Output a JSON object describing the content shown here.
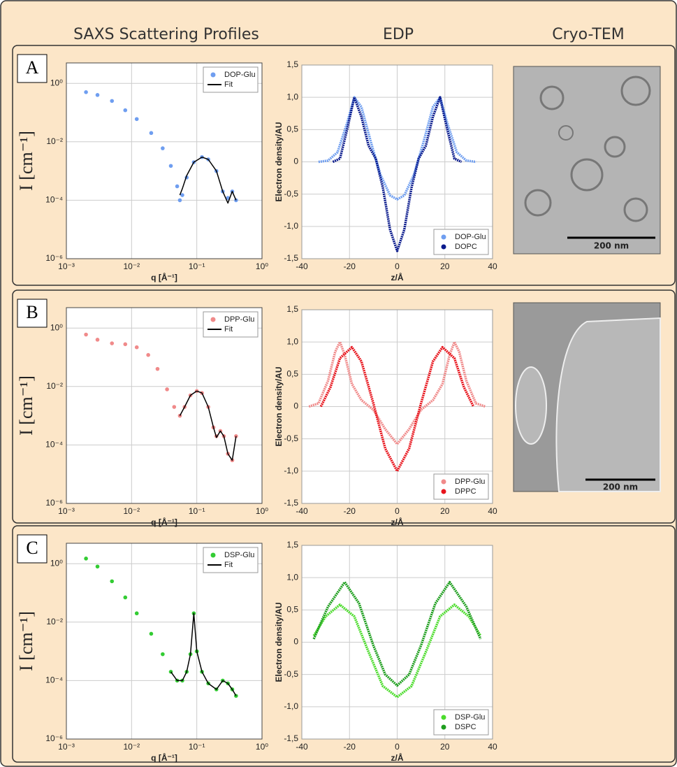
{
  "columns": [
    "SAXS Scattering Profiles",
    "EDP",
    "Cryo-TEM"
  ],
  "panels": [
    {
      "label": "A",
      "scale_bar": "200 nm"
    },
    {
      "label": "B",
      "scale_bar": "200 nm"
    },
    {
      "label": "C"
    }
  ],
  "chart_data": [
    {
      "type": "scatter",
      "xscale": "log",
      "yscale": "log",
      "grid": true,
      "legend": "upper right",
      "xlabel": "q [Å⁻¹]",
      "ylabel": "I [cm⁻¹]",
      "xlim": [
        0.001,
        1
      ],
      "ylim": [
        1e-06,
        5
      ],
      "xticks": [
        {
          "value": 0.001,
          "label": "10⁻³"
        },
        {
          "value": 0.01,
          "label": "10⁻²"
        },
        {
          "value": 0.1,
          "label": "10⁻¹"
        },
        {
          "value": 1,
          "label": "10⁰"
        }
      ],
      "yticks": [
        {
          "value": 1e-06,
          "label": "10⁻⁶"
        },
        {
          "value": 0.0001,
          "label": "10⁻⁴"
        },
        {
          "value": 0.01,
          "label": "10⁻²"
        },
        {
          "value": 1,
          "label": "10⁰"
        }
      ],
      "series": [
        {
          "name": "DOP-Glu",
          "color": "#6f9ef0",
          "mode": "markers",
          "x": [
            0.002,
            0.003,
            0.005,
            0.008,
            0.012,
            0.02,
            0.03,
            0.04,
            0.05,
            0.055,
            0.06,
            0.07,
            0.09,
            0.12,
            0.15,
            0.2,
            0.25,
            0.3,
            0.35,
            0.4
          ],
          "values": [
            0.5,
            0.4,
            0.25,
            0.12,
            0.06,
            0.02,
            0.006,
            0.0015,
            0.0003,
            0.0001,
            0.00015,
            0.0006,
            0.002,
            0.003,
            0.0025,
            0.001,
            0.0002,
            0.00012,
            0.0002,
            0.0001
          ]
        },
        {
          "name": "Fit",
          "color": "#000000",
          "mode": "line",
          "x": [
            0.055,
            0.06,
            0.07,
            0.09,
            0.12,
            0.15,
            0.2,
            0.25,
            0.3,
            0.35,
            0.4
          ],
          "values": [
            0.00015,
            0.00025,
            0.0007,
            0.002,
            0.003,
            0.0025,
            0.001,
            0.0002,
            8e-05,
            0.0002,
            0.0001
          ]
        }
      ]
    },
    {
      "type": "line",
      "grid": true,
      "legend": "lower right",
      "xlabel": "z/Å",
      "ylabel": "Electron density/AU",
      "xlim": [
        -40,
        40
      ],
      "ylim": [
        -1.5,
        1.5
      ],
      "xticks": [
        -40,
        -20,
        0,
        20,
        40
      ],
      "yticks": [
        {
          "value": -1.5,
          "label": "-1,5"
        },
        {
          "value": -1,
          "label": "-1,0"
        },
        {
          "value": -0.5,
          "label": "-0,5"
        },
        0,
        {
          "value": 0.5,
          "label": "0,5"
        },
        {
          "value": 1,
          "label": "1,0"
        },
        {
          "value": 1.5,
          "label": "1,5"
        }
      ],
      "series": [
        {
          "name": "DOP-Glu",
          "color": "#6f9ef0",
          "x": [
            -33,
            -29,
            -25,
            -21,
            -18,
            -15,
            -11,
            -7,
            -3,
            0,
            3,
            7,
            11,
            15,
            18,
            21,
            25,
            29,
            33
          ],
          "values": [
            0,
            0.02,
            0.15,
            0.6,
            1.0,
            0.85,
            0.3,
            -0.2,
            -0.52,
            -0.58,
            -0.52,
            -0.2,
            0.3,
            0.85,
            1.0,
            0.6,
            0.15,
            0.02,
            0
          ]
        },
        {
          "name": "DOPC",
          "color": "#0a1a8c",
          "x": [
            -27,
            -24,
            -21,
            -18,
            -15,
            -12,
            -9,
            -6,
            -3,
            0,
            3,
            6,
            9,
            12,
            15,
            18,
            21,
            24,
            27
          ],
          "values": [
            0,
            0.05,
            0.5,
            1.0,
            0.7,
            0.25,
            0.05,
            -0.4,
            -1.05,
            -1.38,
            -1.05,
            -0.4,
            0.05,
            0.25,
            0.7,
            1.0,
            0.5,
            0.05,
            0
          ]
        }
      ]
    },
    {
      "type": "scatter",
      "xscale": "log",
      "yscale": "log",
      "grid": true,
      "legend": "upper right",
      "xlabel": "q [Å⁻¹]",
      "ylabel": "I [cm⁻¹]",
      "xlim": [
        0.001,
        1
      ],
      "ylim": [
        1e-06,
        5
      ],
      "xticks": [
        {
          "value": 0.001,
          "label": "10⁻³"
        },
        {
          "value": 0.01,
          "label": "10⁻²"
        },
        {
          "value": 0.1,
          "label": "10⁻¹"
        },
        {
          "value": 1,
          "label": "10⁰"
        }
      ],
      "yticks": [
        {
          "value": 1e-06,
          "label": "10⁻⁶"
        },
        {
          "value": 0.0001,
          "label": "10⁻⁴"
        },
        {
          "value": 0.01,
          "label": "10⁻²"
        },
        {
          "value": 1,
          "label": "10⁰"
        }
      ],
      "series": [
        {
          "name": "DPP-Glu",
          "color": "#f08a8a",
          "mode": "markers",
          "x": [
            0.002,
            0.003,
            0.005,
            0.008,
            0.012,
            0.018,
            0.025,
            0.035,
            0.045,
            0.055,
            0.065,
            0.08,
            0.1,
            0.12,
            0.15,
            0.18,
            0.2,
            0.23,
            0.26,
            0.3,
            0.35,
            0.4
          ],
          "values": [
            0.6,
            0.4,
            0.3,
            0.28,
            0.22,
            0.12,
            0.04,
            0.008,
            0.002,
            0.001,
            0.002,
            0.005,
            0.007,
            0.006,
            0.002,
            0.0004,
            0.0002,
            0.0003,
            0.0002,
            5e-05,
            3e-05,
            0.0002
          ]
        },
        {
          "name": "Fit",
          "color": "#000000",
          "mode": "line",
          "x": [
            0.055,
            0.065,
            0.08,
            0.1,
            0.12,
            0.15,
            0.18,
            0.2,
            0.23,
            0.26,
            0.3,
            0.35,
            0.4
          ],
          "values": [
            0.001,
            0.002,
            0.005,
            0.007,
            0.006,
            0.002,
            0.0004,
            0.00018,
            0.0003,
            0.0002,
            5e-05,
            3e-05,
            0.0002
          ]
        }
      ]
    },
    {
      "type": "line",
      "grid": true,
      "legend": "lower right",
      "xlabel": "z/Å",
      "ylabel": "Electron density/AU",
      "xlim": [
        -40,
        40
      ],
      "ylim": [
        -1.5,
        1.5
      ],
      "xticks": [
        -40,
        -20,
        0,
        20,
        40
      ],
      "yticks": [
        {
          "value": -1.5,
          "label": "-1,5"
        },
        {
          "value": -1,
          "label": "-1,0"
        },
        {
          "value": -0.5,
          "label": "-0,5"
        },
        0,
        {
          "value": 0.5,
          "label": "0,5"
        },
        {
          "value": 1,
          "label": "1,0"
        },
        {
          "value": 1.5,
          "label": "1,5"
        }
      ],
      "series": [
        {
          "name": "DPP-Glu",
          "color": "#f08a8a",
          "x": [
            -37,
            -33,
            -29,
            -26,
            -24,
            -22,
            -19,
            -15,
            -10,
            -5,
            0,
            5,
            10,
            15,
            19,
            22,
            24,
            26,
            29,
            33,
            37
          ],
          "values": [
            0,
            0.05,
            0.4,
            0.85,
            1.0,
            0.8,
            0.35,
            0.1,
            -0.05,
            -0.35,
            -0.58,
            -0.35,
            -0.05,
            0.1,
            0.35,
            0.8,
            1.0,
            0.85,
            0.4,
            0.05,
            0
          ]
        },
        {
          "name": "DPPC",
          "color": "#e8141c",
          "x": [
            -32,
            -28,
            -24,
            -19,
            -15,
            -10,
            -5,
            0,
            5,
            10,
            15,
            19,
            24,
            28,
            32
          ],
          "values": [
            0,
            0.3,
            0.75,
            0.92,
            0.7,
            0.05,
            -0.65,
            -1.0,
            -0.65,
            0.05,
            0.7,
            0.92,
            0.75,
            0.3,
            0
          ]
        }
      ]
    },
    {
      "type": "scatter",
      "xscale": "log",
      "yscale": "log",
      "grid": true,
      "legend": "upper right",
      "xlabel": "q [Å⁻¹]",
      "ylabel": "I [cm⁻¹]",
      "xlim": [
        0.001,
        1
      ],
      "ylim": [
        1e-06,
        5
      ],
      "xticks": [
        {
          "value": 0.001,
          "label": "10⁻³"
        },
        {
          "value": 0.01,
          "label": "10⁻²"
        },
        {
          "value": 0.1,
          "label": "10⁻¹"
        },
        {
          "value": 1,
          "label": "10⁰"
        }
      ],
      "yticks": [
        {
          "value": 1e-06,
          "label": "10⁻⁶"
        },
        {
          "value": 0.0001,
          "label": "10⁻⁴"
        },
        {
          "value": 0.01,
          "label": "10⁻²"
        },
        {
          "value": 1,
          "label": "10⁰"
        }
      ],
      "series": [
        {
          "name": "DSP-Glu",
          "color": "#33cc33",
          "mode": "markers",
          "x": [
            0.002,
            0.003,
            0.005,
            0.008,
            0.012,
            0.02,
            0.03,
            0.04,
            0.05,
            0.06,
            0.07,
            0.08,
            0.09,
            0.1,
            0.12,
            0.15,
            0.2,
            0.25,
            0.3,
            0.35,
            0.4
          ],
          "values": [
            1.5,
            0.8,
            0.25,
            0.07,
            0.02,
            0.004,
            0.0008,
            0.0002,
            0.0001,
            0.0001,
            0.0002,
            0.0008,
            0.02,
            0.001,
            0.0002,
            8e-05,
            5e-05,
            0.0001,
            8e-05,
            5e-05,
            3e-05
          ]
        },
        {
          "name": "Fit",
          "color": "#000000",
          "mode": "line",
          "x": [
            0.04,
            0.05,
            0.06,
            0.07,
            0.08,
            0.09,
            0.1,
            0.12,
            0.15,
            0.2,
            0.25,
            0.3,
            0.35,
            0.4
          ],
          "values": [
            0.0002,
            0.0001,
            0.0001,
            0.0002,
            0.0008,
            0.02,
            0.001,
            0.0002,
            8e-05,
            5e-05,
            0.0001,
            8e-05,
            5e-05,
            3e-05
          ]
        }
      ]
    },
    {
      "type": "line",
      "grid": true,
      "legend": "lower right",
      "xlabel": "z/Å",
      "ylabel": "Electron density/AU",
      "xlim": [
        -40,
        40
      ],
      "ylim": [
        -1.5,
        1.5
      ],
      "xticks": [
        -40,
        -20,
        0,
        20,
        40
      ],
      "yticks": [
        {
          "value": -1.5,
          "label": "-1,5"
        },
        {
          "value": -1,
          "label": "-1,0"
        },
        {
          "value": -0.5,
          "label": "-0,5"
        },
        0,
        {
          "value": 0.5,
          "label": "0,5"
        },
        {
          "value": 1,
          "label": "1,0"
        },
        {
          "value": 1.5,
          "label": "1,5"
        }
      ],
      "series": [
        {
          "name": "DSP-Glu",
          "color": "#4cdc2c",
          "x": [
            -35,
            -30,
            -24,
            -18,
            -12,
            -6,
            0,
            6,
            12,
            18,
            24,
            30,
            35
          ],
          "values": [
            0.1,
            0.4,
            0.58,
            0.4,
            -0.15,
            -0.68,
            -0.85,
            -0.68,
            -0.15,
            0.4,
            0.58,
            0.4,
            0.1
          ]
        },
        {
          "name": "DSPC",
          "color": "#1e9e1e",
          "x": [
            -35,
            -29,
            -22,
            -16,
            -10,
            -5,
            0,
            5,
            10,
            16,
            22,
            29,
            35
          ],
          "values": [
            0.05,
            0.55,
            0.93,
            0.6,
            -0.05,
            -0.5,
            -0.67,
            -0.5,
            -0.05,
            0.6,
            0.93,
            0.55,
            0.05
          ]
        }
      ]
    }
  ]
}
